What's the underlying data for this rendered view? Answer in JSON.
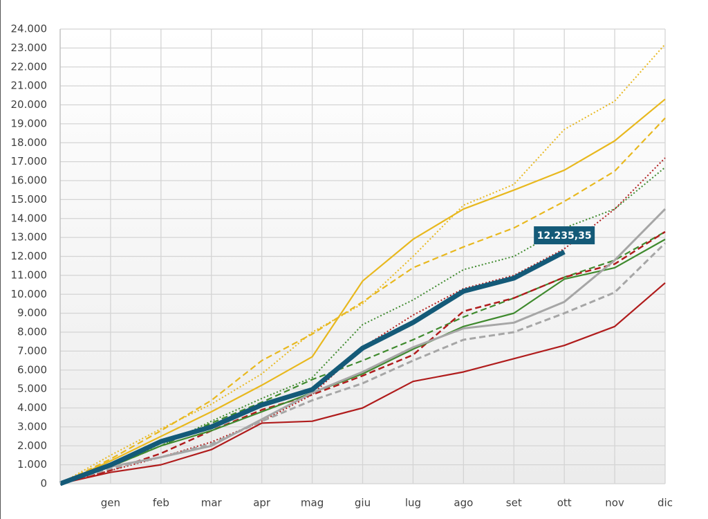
{
  "chart_data": {
    "type": "line",
    "categories": [
      null,
      "gen",
      "feb",
      "mar",
      "apr",
      "mag",
      "giu",
      "lug",
      "ago",
      "set",
      "ott",
      "nov",
      "dic"
    ],
    "ylim": [
      0,
      24000
    ],
    "yticks": [
      0,
      {
        "value": 1000,
        "label": "1.000"
      },
      {
        "value": 2000,
        "label": "2.000"
      },
      {
        "value": 3000,
        "label": "3.000"
      },
      {
        "value": 4000,
        "label": "4.000"
      },
      {
        "value": 5000,
        "label": "5.000"
      },
      {
        "value": 6000,
        "label": "6.000"
      },
      {
        "value": 7000,
        "label": "7.000"
      },
      {
        "value": 8000,
        "label": "8.000"
      },
      {
        "value": 9000,
        "label": "9.000"
      },
      {
        "value": 10000,
        "label": "10.000"
      },
      {
        "value": 11000,
        "label": "11.000"
      },
      {
        "value": 12000,
        "label": "12.000"
      },
      {
        "value": 13000,
        "label": "13.000"
      },
      {
        "value": 14000,
        "label": "14.000"
      },
      {
        "value": 15000,
        "label": "15.000"
      },
      {
        "value": 16000,
        "label": "16.000"
      },
      {
        "value": 17000,
        "label": "17.000"
      },
      {
        "value": 18000,
        "label": "18.000"
      },
      {
        "value": 19000,
        "label": "19.000"
      },
      {
        "value": 20000,
        "label": "20.000"
      },
      {
        "value": 21000,
        "label": "21.000"
      },
      {
        "value": 22000,
        "label": "22.000"
      },
      {
        "value": 23000,
        "label": "23.000"
      },
      {
        "value": 24000,
        "label": "24.000"
      }
    ],
    "grid": true,
    "series": [
      {
        "color": "#e8b81e",
        "style": "solid",
        "width": 2.2,
        "values": [
          0,
          1200,
          2500,
          3800,
          5200,
          6700,
          10700,
          12900,
          14500,
          15500,
          16550,
          18100,
          20300
        ]
      },
      {
        "color": "#e8b81e",
        "style": "dot",
        "width": 2,
        "values": [
          0,
          1500,
          2900,
          4200,
          5800,
          8000,
          9500,
          12000,
          14700,
          15800,
          18700,
          20200,
          23200
        ]
      },
      {
        "color": "#e8b81e",
        "style": "dash",
        "width": 2.2,
        "values": [
          0,
          1300,
          2800,
          4400,
          6500,
          7900,
          9600,
          11400,
          12500,
          13500,
          14900,
          16500,
          19300
        ]
      },
      {
        "color": "#3f8a2e",
        "style": "dot",
        "width": 2,
        "values": [
          0,
          1000,
          2000,
          3300,
          4500,
          5600,
          8400,
          9700,
          11300,
          12000,
          13500,
          14500,
          16700
        ]
      },
      {
        "color": "#b01c1c",
        "style": "dot",
        "width": 2,
        "values": [
          0,
          700,
          1400,
          2200,
          3300,
          4700,
          7200,
          8900,
          10300,
          11000,
          12400,
          14500,
          17200
        ]
      },
      {
        "color": "#3f8a2e",
        "style": "dash",
        "width": 2.2,
        "values": [
          0,
          900,
          2000,
          3200,
          4300,
          5500,
          6500,
          7600,
          8800,
          9800,
          10900,
          11800,
          13300
        ]
      },
      {
        "color": "#b01c1c",
        "style": "dash",
        "width": 2.5,
        "values": [
          0,
          700,
          1600,
          2800,
          3900,
          4700,
          5700,
          6800,
          9100,
          9800,
          10900,
          11600,
          13300
        ]
      },
      {
        "color": "#3f8a2e",
        "style": "solid",
        "width": 2.2,
        "values": [
          0,
          900,
          2000,
          2800,
          3800,
          4800,
          5800,
          7100,
          8300,
          9000,
          10800,
          11400,
          12900
        ]
      },
      {
        "color": "#a6a6a6",
        "style": "solid",
        "width": 3,
        "values": [
          0,
          900,
          1400,
          2000,
          3400,
          4800,
          5900,
          7200,
          8200,
          8500,
          9600,
          11800,
          14500
        ]
      },
      {
        "color": "#a6a6a6",
        "style": "dash",
        "width": 3,
        "values": [
          0,
          800,
          1400,
          2100,
          3300,
          4400,
          5300,
          6500,
          7600,
          8000,
          9000,
          10100,
          12700
        ]
      },
      {
        "color": "#b01c1c",
        "style": "solid",
        "width": 2.2,
        "values": [
          0,
          600,
          1000,
          1800,
          3200,
          3300,
          4000,
          5400,
          5900,
          6600,
          7300,
          8300,
          10600
        ]
      },
      {
        "color": "#145a78",
        "style": "solid",
        "width": 7,
        "values": [
          0,
          990,
          2230,
          3000,
          4160,
          4970,
          7160,
          8510,
          10160,
          10850,
          12235.35,
          null,
          null
        ],
        "value_labels": [
          null,
          null,
          null,
          null,
          null,
          null,
          null,
          null,
          null,
          null,
          "12.235,35",
          null,
          null
        ]
      }
    ]
  }
}
